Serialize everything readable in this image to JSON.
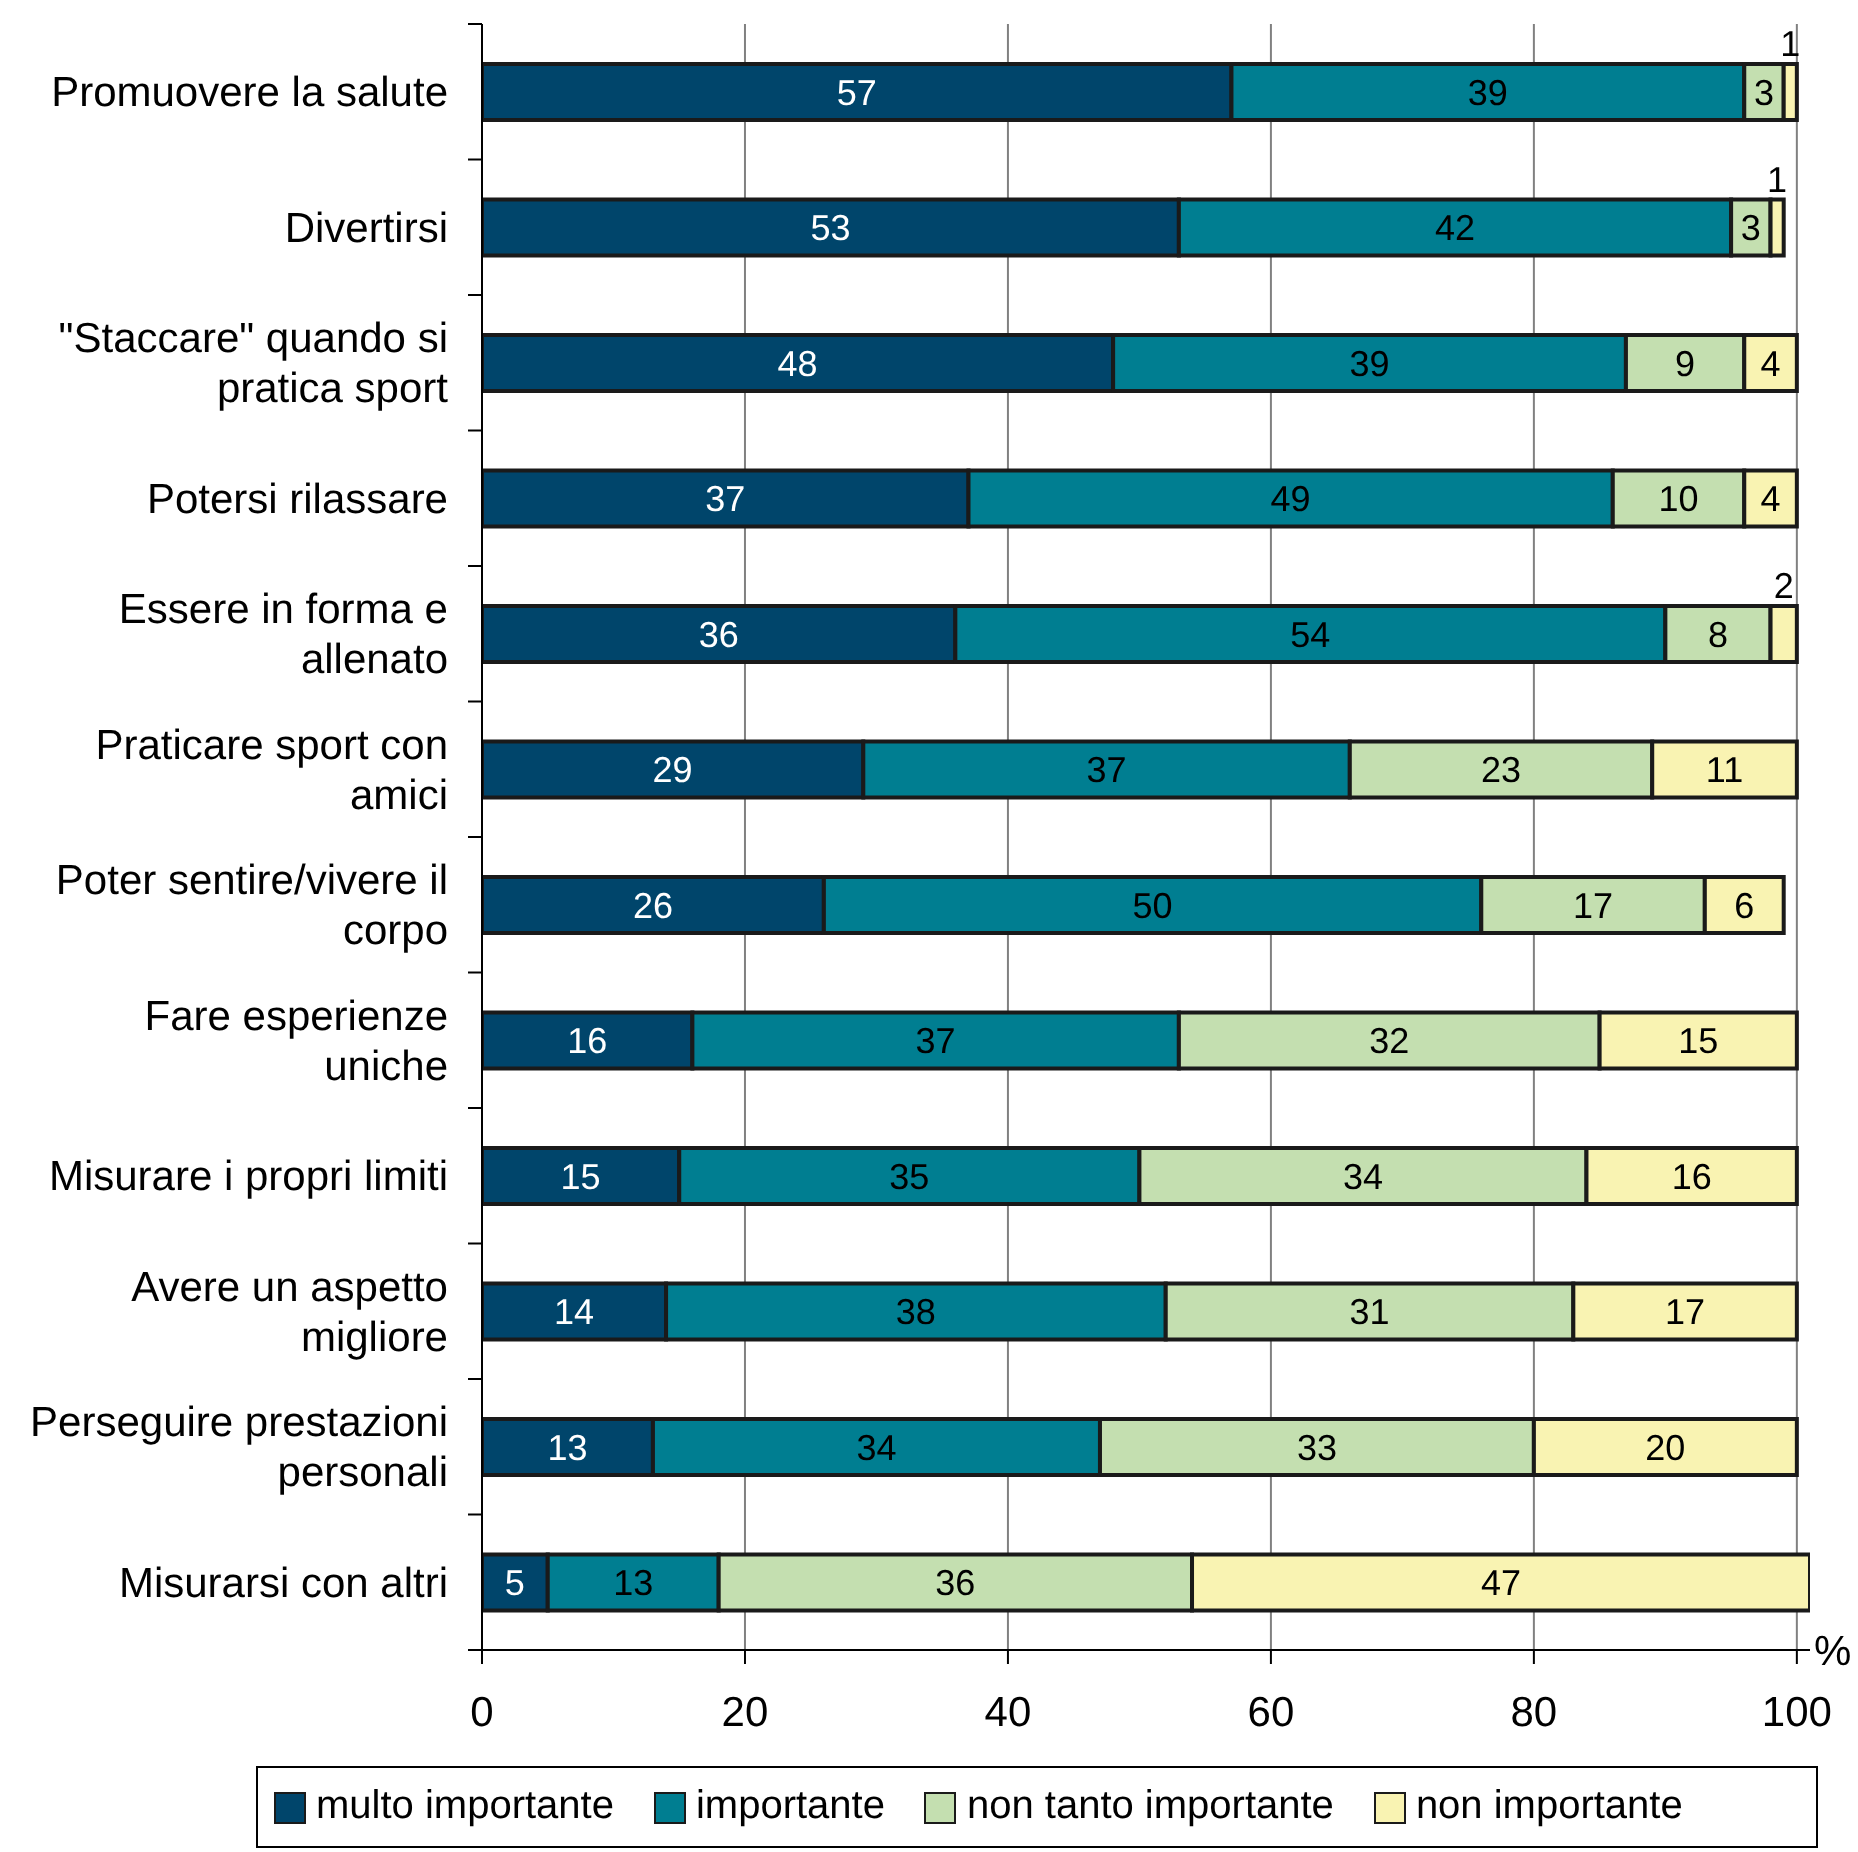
{
  "chart_data": {
    "type": "bar",
    "orientation": "horizontal",
    "stacked": true,
    "categories": [
      "Promuovere la salute",
      "Divertirsi",
      "\"Staccare\" quando si pratica sport",
      "Potersi rilassare",
      "Essere in forma e allenato",
      "Praticare sport con amici",
      "Poter sentire/vivere il corpo",
      "Fare esperienze uniche",
      "Misurare i propri limiti",
      "Avere un aspetto migliore",
      "Perseguire prestazioni personali",
      "Misurarsi con altri"
    ],
    "series": [
      {
        "name": "multo importante",
        "color": "#00456b",
        "values": [
          57,
          53,
          48,
          37,
          36,
          29,
          26,
          16,
          15,
          14,
          13,
          5
        ]
      },
      {
        "name": "importante",
        "color": "#007e91",
        "values": [
          39,
          42,
          39,
          49,
          54,
          37,
          50,
          37,
          35,
          38,
          34,
          13
        ]
      },
      {
        "name": "non tanto importante",
        "color": "#c4dfb0",
        "values": [
          3,
          3,
          9,
          10,
          8,
          23,
          17,
          32,
          34,
          31,
          33,
          36
        ]
      },
      {
        "name": "non importante",
        "color": "#f9f3b2",
        "values": [
          1,
          1,
          4,
          4,
          2,
          11,
          6,
          15,
          16,
          17,
          20,
          47
        ]
      }
    ],
    "xlabel": "%",
    "xlim": [
      0,
      101
    ],
    "xticks": [
      0,
      20,
      40,
      60,
      80,
      100
    ],
    "grid": "x",
    "legend": "bottom",
    "data_labels": true
  }
}
